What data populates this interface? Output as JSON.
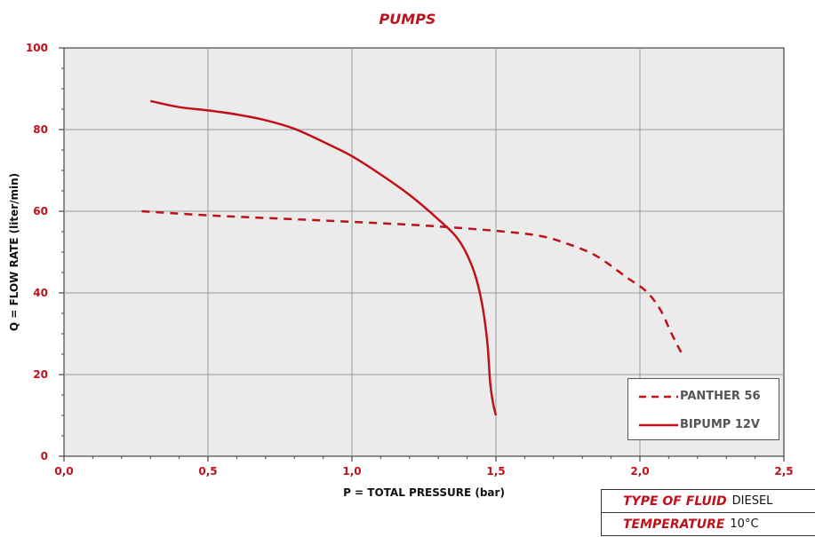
{
  "chart_data": {
    "type": "line",
    "title": "PUMPS",
    "xlabel": "P = TOTAL PRESSURE (bar)",
    "ylabel": "Q = FLOW RATE (liter/min)",
    "xlim": [
      0,
      2.5
    ],
    "ylim": [
      0,
      100
    ],
    "xticks": [
      0,
      0.5,
      1.0,
      1.5,
      2.0,
      2.5
    ],
    "xtick_labels": [
      "0,0",
      "0,5",
      "1,0",
      "1,5",
      "2,0",
      "2,5"
    ],
    "yticks": [
      0,
      20,
      40,
      60,
      80,
      100
    ],
    "ytick_labels": [
      "0",
      "20",
      "40",
      "60",
      "80",
      "100"
    ],
    "grid": true,
    "legend_position": "bottom-right",
    "series": [
      {
        "name": "PANTHER 56",
        "style": "dashed",
        "color": "#c0101a",
        "points": [
          [
            0.27,
            60
          ],
          [
            0.5,
            59
          ],
          [
            0.75,
            58.2
          ],
          [
            1.0,
            57.4
          ],
          [
            1.25,
            56.5
          ],
          [
            1.5,
            55.2
          ],
          [
            1.65,
            54
          ],
          [
            1.75,
            52
          ],
          [
            1.85,
            49
          ],
          [
            1.95,
            44
          ],
          [
            2.02,
            40.5
          ],
          [
            2.07,
            36
          ],
          [
            2.11,
            30
          ],
          [
            2.15,
            24.5
          ]
        ]
      },
      {
        "name": "BIPUMP 12V",
        "style": "solid",
        "color": "#c0101a",
        "points": [
          [
            0.3,
            87
          ],
          [
            0.4,
            85.5
          ],
          [
            0.5,
            84.7
          ],
          [
            0.6,
            83.7
          ],
          [
            0.7,
            82.3
          ],
          [
            0.8,
            80.2
          ],
          [
            0.9,
            77
          ],
          [
            1.0,
            73.5
          ],
          [
            1.1,
            69
          ],
          [
            1.2,
            64
          ],
          [
            1.3,
            58
          ],
          [
            1.37,
            53
          ],
          [
            1.42,
            46
          ],
          [
            1.45,
            38
          ],
          [
            1.47,
            28
          ],
          [
            1.48,
            18
          ],
          [
            1.49,
            13
          ],
          [
            1.5,
            10
          ]
        ]
      }
    ]
  },
  "info_table": [
    {
      "key": "TYPE OF FLUID",
      "value": "DIESEL"
    },
    {
      "key": "TEMPERATURE",
      "value": "10°C"
    }
  ]
}
